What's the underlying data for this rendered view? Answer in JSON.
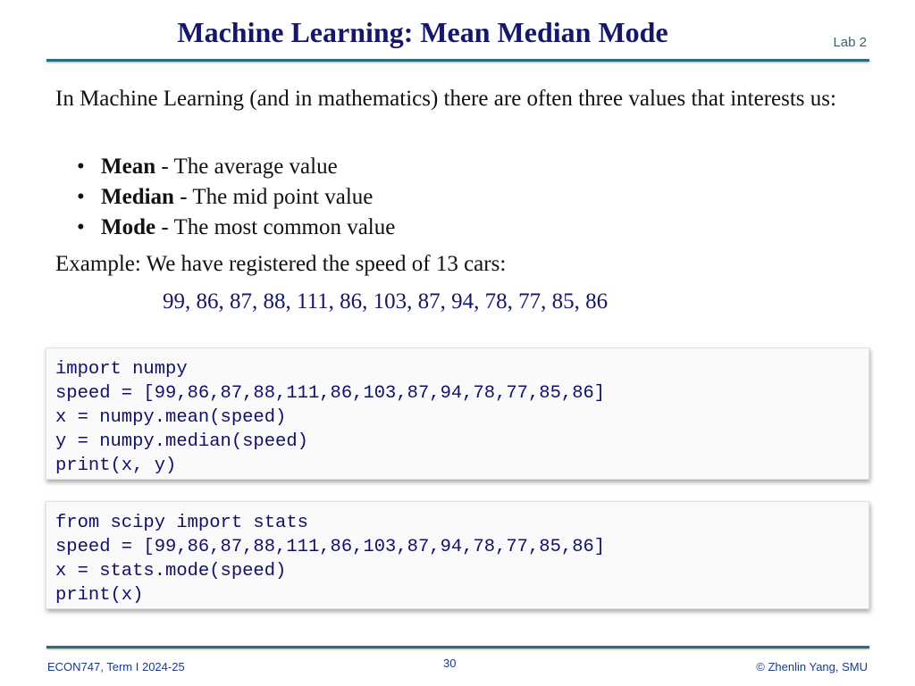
{
  "header": {
    "title": "Machine Learning: Mean Median Mode",
    "lab_tag": "Lab 2"
  },
  "intro": "In Machine Learning (and in mathematics) there are often three values that interests us:",
  "bullets": [
    {
      "term": "Mean",
      "desc": " - The average value"
    },
    {
      "term": "Median",
      "desc": " - The mid point value"
    },
    {
      "term": "Mode",
      "desc": " - The most common value"
    }
  ],
  "bullet_symbol": "•",
  "example": "Example: We have registered the speed of 13 cars:",
  "speed_values": "99, 86, 87, 88, 111, 86, 103, 87, 94, 78, 77, 85, 86",
  "code_blocks": [
    {
      "code": "import numpy\nspeed = [99,86,87,88,111,86,103,87,94,78,77,85,86]\nx = numpy.mean(speed)\ny = numpy.median(speed)\nprint(x, y)"
    },
    {
      "code": "from scipy import stats\nspeed = [99,86,87,88,111,86,103,87,94,78,77,85,86]\nx = stats.mode(speed)\nprint(x)"
    }
  ],
  "footer": {
    "course": "ECON747, Term I  2024-25",
    "page_number": "30",
    "copyright": "© Zhenlin Yang, SMU"
  },
  "colors": {
    "title": "#16166b",
    "rule": "#2b6b7b",
    "code_text": "#10106b",
    "footer_text": "#1a3a8a"
  }
}
